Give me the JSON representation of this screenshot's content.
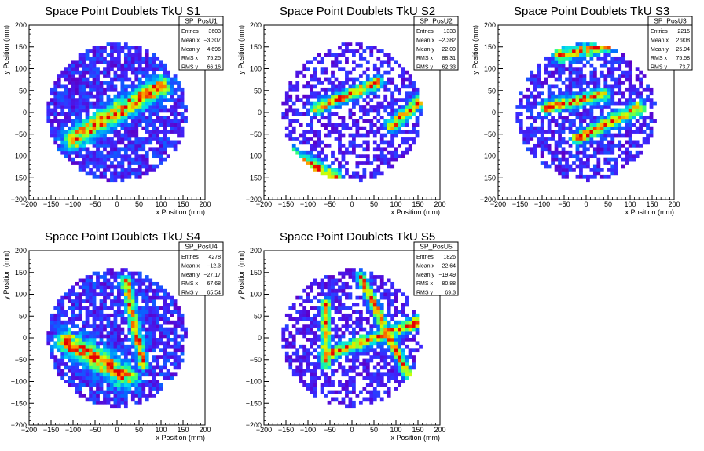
{
  "chart_data": [
    {
      "type": "heatmap",
      "title": "Space Point Doublets TkU S1",
      "xlabel": "x Position (mm)",
      "ylabel": "y Position (mm)",
      "xlim": [
        -200,
        200
      ],
      "ylim": [
        -200,
        200
      ],
      "xticks": [
        -200,
        -150,
        -100,
        -50,
        0,
        50,
        100,
        150,
        200
      ],
      "yticks": [
        -200,
        -150,
        -100,
        -50,
        0,
        50,
        100,
        150,
        200
      ],
      "stats": {
        "name": "SP_PosU1",
        "rows": [
          [
            "Entries",
            "3603"
          ],
          [
            "Mean x",
            "-3.307"
          ],
          [
            "Mean y",
            "4.696"
          ],
          [
            "RMS x",
            "75.25"
          ],
          [
            "RMS y",
            "66.16"
          ]
        ]
      },
      "bands": [
        {
          "x1": -100,
          "y1": -60,
          "x2": 100,
          "y2": 60,
          "w": 16
        }
      ],
      "fill": 0.78,
      "base_max": 0.26,
      "seed": 11
    },
    {
      "type": "heatmap",
      "title": "Space Point Doublets TkU S2",
      "xlabel": "x Position (mm)",
      "ylabel": "y Position (mm)",
      "xlim": [
        -200,
        200
      ],
      "ylim": [
        -200,
        200
      ],
      "xticks": [
        -200,
        -150,
        -100,
        -50,
        0,
        50,
        100,
        150,
        200
      ],
      "yticks": [
        -200,
        -150,
        -100,
        -50,
        0,
        50,
        100,
        150,
        200
      ],
      "stats": {
        "name": "SP_PosU2",
        "rows": [
          [
            "Entries",
            "1333"
          ],
          [
            "Mean x",
            "-2.382"
          ],
          [
            "Mean y",
            "-22.09"
          ],
          [
            "RMS x",
            "88.31"
          ],
          [
            "RMS y",
            "62.33"
          ]
        ]
      },
      "bands": [
        {
          "x1": -150,
          "y1": -90,
          "x2": -40,
          "y2": -150,
          "w": 12
        },
        {
          "x1": -80,
          "y1": 10,
          "x2": 60,
          "y2": 70,
          "w": 10
        },
        {
          "x1": 90,
          "y1": -30,
          "x2": 160,
          "y2": 30,
          "w": 10
        }
      ],
      "fill": 0.55,
      "base_max": 0.2,
      "seed": 22
    },
    {
      "type": "heatmap",
      "title": "Space Point Doublets TkU S3",
      "xlabel": "x Position (mm)",
      "ylabel": "y Position (mm)",
      "xlim": [
        -200,
        200
      ],
      "ylim": [
        -200,
        200
      ],
      "xticks": [
        -200,
        -150,
        -100,
        -50,
        0,
        50,
        100,
        150,
        200
      ],
      "yticks": [
        -200,
        -150,
        -100,
        -50,
        0,
        50,
        100,
        150,
        200
      ],
      "stats": {
        "name": "SP_PosU3",
        "rows": [
          [
            "Entries",
            "2215"
          ],
          [
            "Mean x",
            "2.908"
          ],
          [
            "Mean y",
            "25.94"
          ],
          [
            "RMS x",
            "75.58"
          ],
          [
            "RMS y",
            "73.7"
          ]
        ]
      },
      "bands": [
        {
          "x1": -90,
          "y1": 10,
          "x2": 40,
          "y2": 40,
          "w": 10
        },
        {
          "x1": -20,
          "y1": -60,
          "x2": 120,
          "y2": 10,
          "w": 10
        },
        {
          "x1": -60,
          "y1": 130,
          "x2": 80,
          "y2": 160,
          "w": 10
        }
      ],
      "fill": 0.65,
      "base_max": 0.24,
      "seed": 33
    },
    {
      "type": "heatmap",
      "title": "Space Point Doublets TkU S4",
      "xlabel": "x Position (mm)",
      "ylabel": "y Position (mm)",
      "xlim": [
        -200,
        200
      ],
      "ylim": [
        -200,
        200
      ],
      "xticks": [
        -200,
        -150,
        -100,
        -50,
        0,
        50,
        100,
        150,
        200
      ],
      "yticks": [
        -200,
        -150,
        -100,
        -50,
        0,
        50,
        100,
        150,
        200
      ],
      "stats": {
        "name": "SP_PosU4",
        "rows": [
          [
            "Entries",
            "4278"
          ],
          [
            "Mean x",
            "-12.3"
          ],
          [
            "Mean y",
            "-27.17"
          ],
          [
            "RMS x",
            "67.68"
          ],
          [
            "RMS y",
            "65.54"
          ]
        ]
      },
      "bands": [
        {
          "x1": -110,
          "y1": -10,
          "x2": 20,
          "y2": -90,
          "w": 18
        },
        {
          "x1": 20,
          "y1": 130,
          "x2": 60,
          "y2": -60,
          "w": 8
        }
      ],
      "fill": 0.8,
      "base_max": 0.28,
      "seed": 44
    },
    {
      "type": "heatmap",
      "title": "Space Point Doublets TkU S5",
      "xlabel": "x Position (mm)",
      "ylabel": "y Position (mm)",
      "xlim": [
        -200,
        200
      ],
      "ylim": [
        -200,
        200
      ],
      "xticks": [
        -200,
        -150,
        -100,
        -50,
        0,
        50,
        100,
        150,
        200
      ],
      "yticks": [
        -200,
        -150,
        -100,
        -50,
        0,
        50,
        100,
        150,
        200
      ],
      "stats": {
        "name": "SP_PosU5",
        "rows": [
          [
            "Entries",
            "1826"
          ],
          [
            "Mean x",
            "22.64"
          ],
          [
            "Mean y",
            "-19.49"
          ],
          [
            "RMS x",
            "80.88"
          ],
          [
            "RMS y",
            "69.3"
          ]
        ]
      },
      "bands": [
        {
          "x1": -60,
          "y1": -40,
          "x2": 160,
          "y2": 40,
          "w": 10
        },
        {
          "x1": -60,
          "y1": 80,
          "x2": -60,
          "y2": -60,
          "w": 8
        },
        {
          "x1": 20,
          "y1": 140,
          "x2": 130,
          "y2": -90,
          "w": 8
        }
      ],
      "fill": 0.62,
      "base_max": 0.2,
      "seed": 55
    }
  ]
}
